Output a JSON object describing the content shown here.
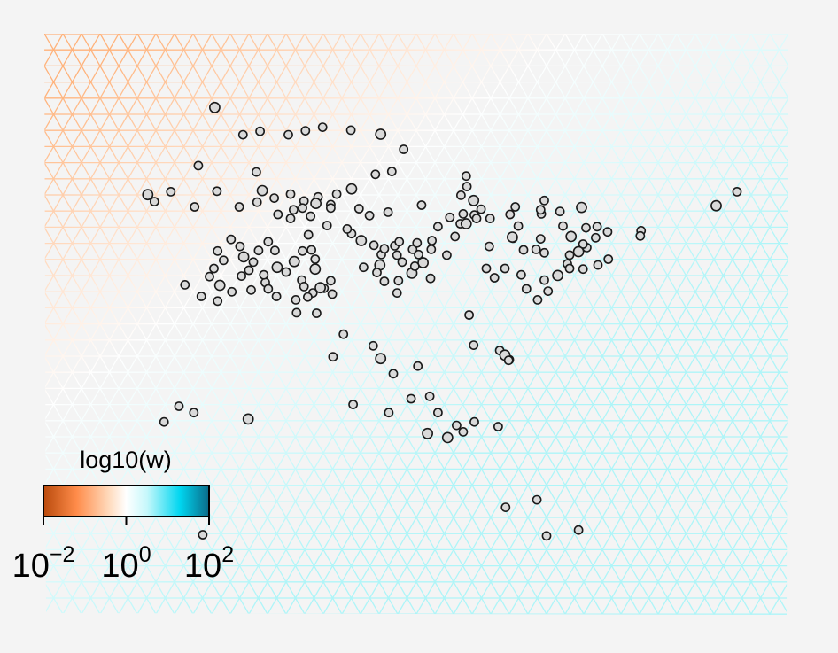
{
  "chart_data": {
    "type": "scatter",
    "title": "",
    "xlabel": "",
    "ylabel": "",
    "background": "#f4f4f4",
    "mesh": {
      "description_colors": {
        "low": "#ffb27a",
        "mid": "#ffffff",
        "high": "#aef5f8"
      }
    },
    "legend": {
      "title": "log10(w)",
      "placement": "bottom-left",
      "range": [
        -2,
        2
      ],
      "ticks": [
        {
          "base": "10",
          "exponent": "−2",
          "value": -2
        },
        {
          "base": "10",
          "exponent": "0",
          "value": 0
        },
        {
          "base": "10",
          "exponent": "2",
          "value": 2
        }
      ],
      "gradient_stops": [
        {
          "value": -2,
          "color": "#b94a0c"
        },
        {
          "value": -1.2,
          "color": "#ff8c4a"
        },
        {
          "value": -0.4,
          "color": "#ffdcbf"
        },
        {
          "value": 0,
          "color": "#ffffff"
        },
        {
          "value": 0.5,
          "color": "#c6f8fb"
        },
        {
          "value": 1.3,
          "color": "#00d6f0"
        },
        {
          "value": 2,
          "color": "#0b6a88"
        }
      ]
    },
    "points": {
      "fill": "#d9d9d9",
      "stroke": "#1a1a1a",
      "values": [
        [
          0.229,
          0.127
        ],
        [
          0.267,
          0.174
        ],
        [
          0.29,
          0.168
        ],
        [
          0.328,
          0.174
        ],
        [
          0.351,
          0.167
        ],
        [
          0.374,
          0.161
        ],
        [
          0.412,
          0.166
        ],
        [
          0.452,
          0.173
        ],
        [
          0.483,
          0.199
        ],
        [
          0.207,
          0.227
        ],
        [
          0.285,
          0.238
        ],
        [
          0.467,
          0.237
        ],
        [
          0.445,
          0.242
        ],
        [
          0.567,
          0.245
        ],
        [
          0.139,
          0.277
        ],
        [
          0.148,
          0.289
        ],
        [
          0.17,
          0.272
        ],
        [
          0.202,
          0.298
        ],
        [
          0.232,
          0.271
        ],
        [
          0.262,
          0.298
        ],
        [
          0.286,
          0.29
        ],
        [
          0.293,
          0.27
        ],
        [
          0.309,
          0.283
        ],
        [
          0.331,
          0.276
        ],
        [
          0.349,
          0.288
        ],
        [
          0.368,
          0.281
        ],
        [
          0.385,
          0.294
        ],
        [
          0.393,
          0.276
        ],
        [
          0.413,
          0.267
        ],
        [
          0.347,
          0.3
        ],
        [
          0.331,
          0.318
        ],
        [
          0.314,
          0.311
        ],
        [
          0.335,
          0.303
        ],
        [
          0.358,
          0.314
        ],
        [
          0.385,
          0.3
        ],
        [
          0.365,
          0.292
        ],
        [
          0.423,
          0.301
        ],
        [
          0.437,
          0.313
        ],
        [
          0.462,
          0.307
        ],
        [
          0.507,
          0.295
        ],
        [
          0.568,
          0.263
        ],
        [
          0.56,
          0.278
        ],
        [
          0.577,
          0.287
        ],
        [
          0.587,
          0.302
        ],
        [
          0.599,
          0.318
        ],
        [
          0.633,
          0.298
        ],
        [
          0.672,
          0.287
        ],
        [
          0.668,
          0.31
        ],
        [
          0.693,
          0.306
        ],
        [
          0.722,
          0.299
        ],
        [
          0.559,
          0.327
        ],
        [
          0.578,
          0.312
        ],
        [
          0.563,
          0.31
        ],
        [
          0.545,
          0.316
        ],
        [
          0.529,
          0.332
        ],
        [
          0.552,
          0.349
        ],
        [
          0.567,
          0.327
        ],
        [
          0.581,
          0.318
        ],
        [
          0.626,
          0.311
        ],
        [
          0.637,
          0.331
        ],
        [
          0.63,
          0.352
        ],
        [
          0.667,
          0.303
        ],
        [
          0.697,
          0.331
        ],
        [
          0.708,
          0.349
        ],
        [
          0.728,
          0.334
        ],
        [
          0.743,
          0.332
        ],
        [
          0.757,
          0.341
        ],
        [
          0.729,
          0.368
        ],
        [
          0.741,
          0.351
        ],
        [
          0.724,
          0.362
        ],
        [
          0.718,
          0.375
        ],
        [
          0.706,
          0.381
        ],
        [
          0.703,
          0.396
        ],
        [
          0.672,
          0.377
        ],
        [
          0.667,
          0.353
        ],
        [
          0.661,
          0.371
        ],
        [
          0.644,
          0.372
        ],
        [
          0.629,
          0.35
        ],
        [
          0.619,
          0.404
        ],
        [
          0.641,
          0.415
        ],
        [
          0.648,
          0.439
        ],
        [
          0.663,
          0.458
        ],
        [
          0.677,
          0.443
        ],
        [
          0.672,
          0.424
        ],
        [
          0.69,
          0.416
        ],
        [
          0.706,
          0.404
        ],
        [
          0.724,
          0.405
        ],
        [
          0.744,
          0.398
        ],
        [
          0.758,
          0.388
        ],
        [
          0.802,
          0.339
        ],
        [
          0.801,
          0.348
        ],
        [
          0.903,
          0.296
        ],
        [
          0.931,
          0.272
        ],
        [
          0.594,
          0.404
        ],
        [
          0.605,
          0.42
        ],
        [
          0.598,
          0.366
        ],
        [
          0.541,
          0.381
        ],
        [
          0.52,
          0.371
        ],
        [
          0.509,
          0.394
        ],
        [
          0.521,
          0.356
        ],
        [
          0.495,
          0.371
        ],
        [
          0.503,
          0.38
        ],
        [
          0.471,
          0.365
        ],
        [
          0.474,
          0.381
        ],
        [
          0.481,
          0.393
        ],
        [
          0.451,
          0.398
        ],
        [
          0.453,
          0.38
        ],
        [
          0.457,
          0.37
        ],
        [
          0.429,
          0.402
        ],
        [
          0.447,
          0.411
        ],
        [
          0.476,
          0.425
        ],
        [
          0.519,
          0.421
        ],
        [
          0.494,
          0.412
        ],
        [
          0.474,
          0.446
        ],
        [
          0.457,
          0.426
        ],
        [
          0.498,
          0.4
        ],
        [
          0.501,
          0.36
        ],
        [
          0.477,
          0.358
        ],
        [
          0.443,
          0.364
        ],
        [
          0.426,
          0.356
        ],
        [
          0.413,
          0.344
        ],
        [
          0.407,
          0.336
        ],
        [
          0.38,
          0.33
        ],
        [
          0.359,
          0.372
        ],
        [
          0.355,
          0.346
        ],
        [
          0.347,
          0.374
        ],
        [
          0.336,
          0.392
        ],
        [
          0.325,
          0.41
        ],
        [
          0.346,
          0.424
        ],
        [
          0.349,
          0.435
        ],
        [
          0.361,
          0.446
        ],
        [
          0.376,
          0.438
        ],
        [
          0.385,
          0.425
        ],
        [
          0.364,
          0.405
        ],
        [
          0.364,
          0.388
        ],
        [
          0.31,
          0.373
        ],
        [
          0.301,
          0.358
        ],
        [
          0.288,
          0.373
        ],
        [
          0.281,
          0.393
        ],
        [
          0.275,
          0.407
        ],
        [
          0.268,
          0.384
        ],
        [
          0.263,
          0.366
        ],
        [
          0.251,
          0.354
        ],
        [
          0.241,
          0.39
        ],
        [
          0.233,
          0.374
        ],
        [
          0.228,
          0.404
        ],
        [
          0.222,
          0.418
        ],
        [
          0.236,
          0.433
        ],
        [
          0.189,
          0.432
        ],
        [
          0.211,
          0.452
        ],
        [
          0.233,
          0.46
        ],
        [
          0.278,
          0.441
        ],
        [
          0.297,
          0.428
        ],
        [
          0.301,
          0.439
        ],
        [
          0.313,
          0.402
        ],
        [
          0.295,
          0.415
        ],
        [
          0.265,
          0.417
        ],
        [
          0.252,
          0.444
        ],
        [
          0.312,
          0.452
        ],
        [
          0.338,
          0.458
        ],
        [
          0.354,
          0.453
        ],
        [
          0.371,
          0.437
        ],
        [
          0.339,
          0.48
        ],
        [
          0.366,
          0.481
        ],
        [
          0.387,
          0.448
        ],
        [
          0.402,
          0.517
        ],
        [
          0.388,
          0.556
        ],
        [
          0.442,
          0.537
        ],
        [
          0.452,
          0.559
        ],
        [
          0.469,
          0.585
        ],
        [
          0.502,
          0.572
        ],
        [
          0.518,
          0.624
        ],
        [
          0.529,
          0.652
        ],
        [
          0.554,
          0.674
        ],
        [
          0.563,
          0.685
        ],
        [
          0.542,
          0.695
        ],
        [
          0.578,
          0.668
        ],
        [
          0.61,
          0.676
        ],
        [
          0.612,
          0.545
        ],
        [
          0.625,
          0.561
        ],
        [
          0.571,
          0.484
        ],
        [
          0.577,
          0.536
        ],
        [
          0.619,
          0.553
        ],
        [
          0.624,
          0.562
        ],
        [
          0.463,
          0.652
        ],
        [
          0.415,
          0.638
        ],
        [
          0.181,
          0.641
        ],
        [
          0.201,
          0.652
        ],
        [
          0.161,
          0.668
        ],
        [
          0.274,
          0.663
        ],
        [
          0.62,
          0.815
        ],
        [
          0.662,
          0.802
        ],
        [
          0.675,
          0.864
        ],
        [
          0.718,
          0.854
        ],
        [
          0.213,
          0.862
        ],
        [
          0.168,
          0.82
        ],
        [
          0.515,
          0.688
        ],
        [
          0.493,
          0.628
        ]
      ]
    }
  }
}
